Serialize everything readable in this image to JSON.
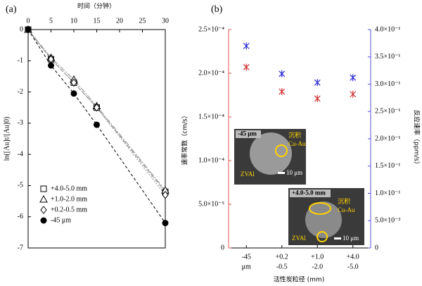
{
  "charts": [
    {
      "chart_data": {
        "type": "line",
        "panel_label": "(a)",
        "x_label": "时间（分钟）",
        "y_label": "ln([Au]t/[Au]0)",
        "x": [
          0,
          5,
          10,
          15,
          30
        ],
        "xlim": [
          0,
          30
        ],
        "xticks": [
          0,
          5,
          10,
          15,
          20,
          25,
          30
        ],
        "ylim": [
          -7,
          0
        ],
        "yticks": [
          0,
          -1,
          -2,
          -3,
          -4,
          -5,
          -6,
          -7
        ],
        "series": [
          {
            "name": "+4.0-5.0 mm",
            "marker": "square",
            "color": "#000000",
            "values": [
              0,
              -0.95,
              -1.7,
              -2.5,
              -5.2
            ]
          },
          {
            "name": "+1.0-2.0 mm",
            "marker": "triangle",
            "color": "#000000",
            "values": [
              0,
              -0.9,
              -1.6,
              -2.45,
              -5.15
            ]
          },
          {
            "name": "+0.2-0.5 mm",
            "marker": "diamond",
            "color": "#000000",
            "values": [
              0,
              -0.95,
              -1.7,
              -2.5,
              -5.3
            ]
          },
          {
            "name": "-45 μm",
            "marker": "circle",
            "color": "#000000",
            "values": [
              0,
              -1.15,
              -2.05,
              -3.05,
              -6.2
            ]
          }
        ]
      }
    },
    {
      "chart_data": {
        "type": "scatter",
        "panel_label": "(b)",
        "x_label": "活性炭粒径 (mm)",
        "y_label": "速率常数（cm/s）",
        "y2_label": "反应速率（ppm/s）",
        "categories": [
          [
            "-45",
            "μm"
          ],
          [
            "+0.2",
            "-0.5"
          ],
          [
            "+1.0",
            "-2.0"
          ],
          [
            "+4.0",
            "-5.0"
          ]
        ],
        "ylim": [
          0,
          0.00025
        ],
        "yticks": [
          {
            "value": 0,
            "label": "0"
          },
          {
            "value": 5e-05,
            "label": "5.0×10⁻⁵"
          },
          {
            "value": 0.0001,
            "label": "1.0×10⁻⁴"
          },
          {
            "value": 0.00015,
            "label": "1.5×10⁻⁴"
          },
          {
            "value": 0.0002,
            "label": "2.0×10⁻⁴"
          },
          {
            "value": 0.00025,
            "label": "2.5×10⁻⁴"
          }
        ],
        "y2lim": [
          0,
          0.4
        ],
        "y2ticks": [
          {
            "value": 0,
            "label": "0"
          },
          {
            "value": 0.05,
            "label": "5.0×10⁻²"
          },
          {
            "value": 0.1,
            "label": "1.0×10⁻¹"
          },
          {
            "value": 0.15,
            "label": "1.5×10⁻¹"
          },
          {
            "value": 0.2,
            "label": "2.0×10⁻¹"
          },
          {
            "value": 0.25,
            "label": "2.5×10⁻¹"
          },
          {
            "value": 0.3,
            "label": "3.0×10⁻¹"
          },
          {
            "value": 0.35,
            "label": "3.5×10⁻¹"
          },
          {
            "value": 0.4,
            "label": "4.0×10⁻¹"
          }
        ],
        "series": [
          {
            "color": "#d03030",
            "values": [
              0.000207,
              0.000179,
              0.000171,
              0.000176
            ]
          },
          {
            "color": "#2a2ad0",
            "axis": "y2",
            "values": [
              0.37,
              0.319,
              0.303,
              0.312
            ]
          }
        ],
        "insets": [
          {
            "size": "-45 μm",
            "deposit": "沉积",
            "particle": "Cu-Au",
            "zvai": "ZVAl",
            "scale": "10 μm"
          },
          {
            "size": "+4.0-5.0 mm",
            "deposit": "沉积",
            "particle": "Cu-Au",
            "zvai": "ZVAl",
            "scale": "10 μm"
          }
        ]
      }
    }
  ]
}
